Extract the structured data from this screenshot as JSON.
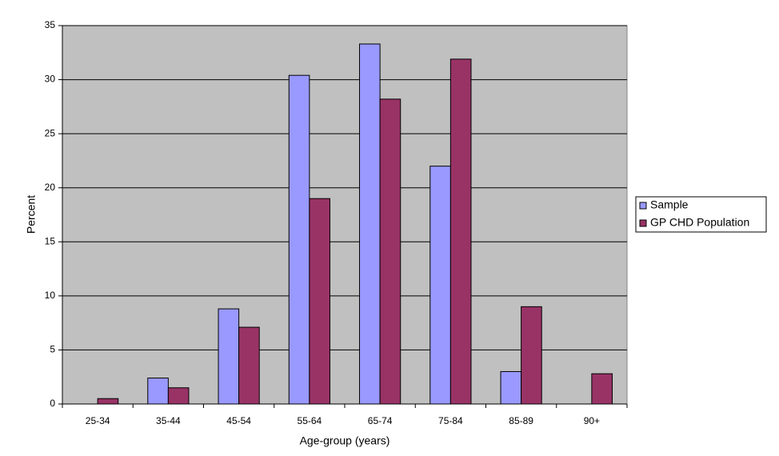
{
  "chart_data": {
    "type": "bar",
    "x_label": "Age-group (years)",
    "y_label": "Percent",
    "categories": [
      "25-34",
      "35-44",
      "45-54",
      "55-64",
      "65-74",
      "75-84",
      "85-89",
      "90+"
    ],
    "series": [
      {
        "name": "Sample",
        "color": "#9999ff",
        "values": [
          null,
          2.4,
          8.8,
          30.4,
          33.3,
          22,
          3,
          null
        ]
      },
      {
        "name": "GP CHD Population",
        "color": "#993366",
        "values": [
          0.5,
          1.5,
          7.1,
          19,
          28.2,
          31.9,
          9,
          2.8
        ]
      }
    ],
    "ylim": [
      0,
      35
    ],
    "yticks": [
      0,
      5,
      10,
      15,
      20,
      25,
      30,
      35
    ],
    "grid": true,
    "plot_background": "#c0c0c0",
    "legend": "right"
  }
}
